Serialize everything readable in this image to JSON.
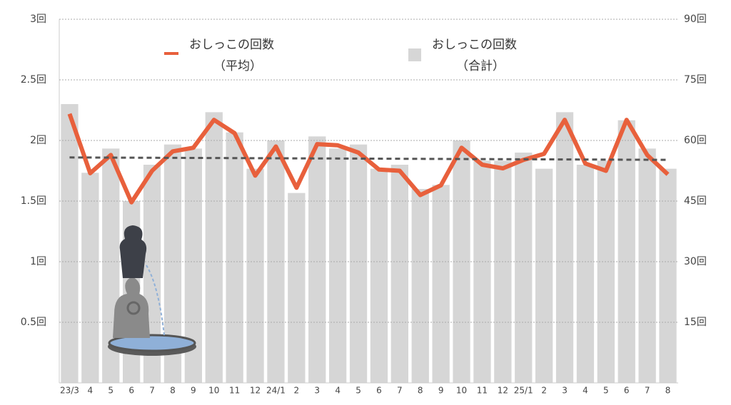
{
  "chart_data": {
    "type": "bar_line",
    "categories": [
      "23/3",
      "4",
      "5",
      "6",
      "7",
      "8",
      "9",
      "10",
      "11",
      "12",
      "24/1",
      "2",
      "3",
      "4",
      "5",
      "6",
      "7",
      "8",
      "9",
      "10",
      "11",
      "12",
      "25/1",
      "2",
      "3",
      "4",
      "5",
      "6",
      "7",
      "8"
    ],
    "series": [
      {
        "name": "おしっこの回数",
        "name_note": "（平均）",
        "type": "line",
        "color": "#e8603c",
        "axis": "y",
        "values": [
          2.22,
          1.73,
          1.88,
          1.49,
          1.75,
          1.91,
          1.94,
          2.17,
          2.06,
          1.71,
          1.95,
          1.61,
          1.97,
          1.96,
          1.9,
          1.76,
          1.75,
          1.55,
          1.63,
          1.94,
          1.8,
          1.77,
          1.84,
          1.89,
          2.17,
          1.81,
          1.75,
          2.17,
          1.88,
          1.72
        ]
      },
      {
        "name": "おしっこの回数",
        "name_note": "（合計）",
        "type": "bar",
        "color": "#d6d6d6",
        "axis": "y2",
        "values": [
          69,
          52,
          58,
          45,
          54,
          59,
          58,
          67,
          62,
          53,
          60,
          47,
          61,
          58,
          59,
          53,
          54,
          48,
          49,
          60,
          55,
          55,
          57,
          53,
          67,
          54,
          55,
          65,
          58,
          53
        ]
      }
    ],
    "trendline": {
      "color": "#555555",
      "values": [
        1.86,
        1.84
      ]
    },
    "ylim": [
      0,
      3
    ],
    "yticks": [
      {
        "value": 0.5,
        "label": "0.5回"
      },
      {
        "value": 1,
        "label": "1回"
      },
      {
        "value": 1.5,
        "label": "1.5回"
      },
      {
        "value": 2,
        "label": "2回"
      },
      {
        "value": 2.5,
        "label": "2.5回"
      },
      {
        "value": 3,
        "label": "3回"
      }
    ],
    "y2lim": [
      0,
      90
    ],
    "y2ticks": [
      {
        "value": 15,
        "label": "15回"
      },
      {
        "value": 30,
        "label": "30回"
      },
      {
        "value": 45,
        "label": "45回"
      },
      {
        "value": 60,
        "label": "60回"
      },
      {
        "value": 75,
        "label": "75回"
      },
      {
        "value": 90,
        "label": "90回"
      }
    ],
    "grid": true
  }
}
